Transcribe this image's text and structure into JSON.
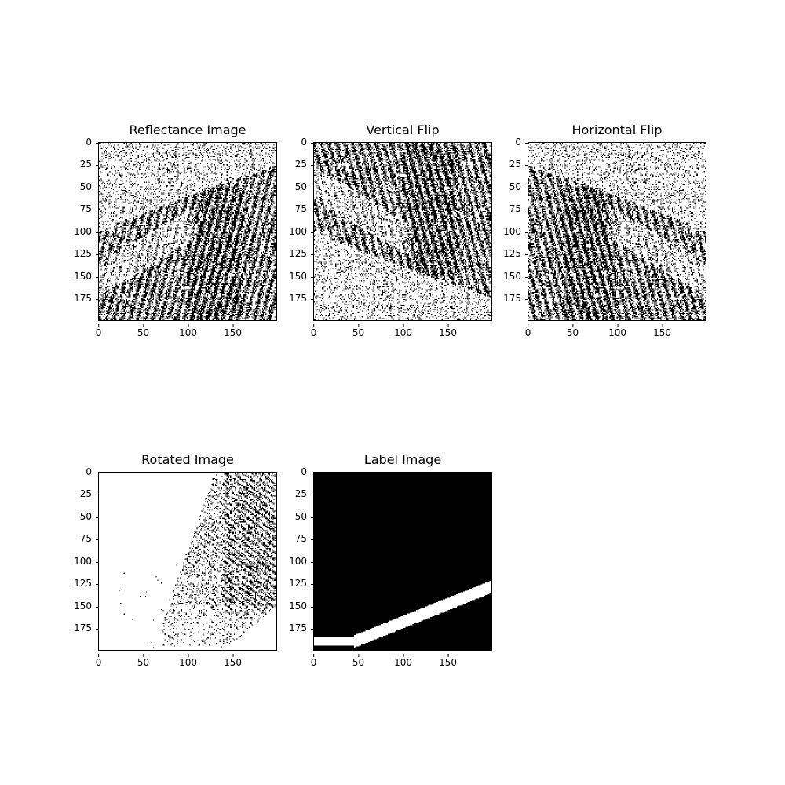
{
  "figure": {
    "panels": [
      {
        "title": "Reflectance Image",
        "kind": "reflectance"
      },
      {
        "title": "Vertical Flip",
        "kind": "vflip"
      },
      {
        "title": "Horizontal Flip",
        "kind": "hflip"
      },
      {
        "title": "Rotated Image",
        "kind": "rotated"
      },
      {
        "title": "Label Image",
        "kind": "label"
      }
    ],
    "yticks": [
      "0",
      "25",
      "50",
      "75",
      "100",
      "125",
      "150",
      "175"
    ],
    "xticks": [
      "0",
      "50",
      "100",
      "150"
    ],
    "colors": {
      "foreground": "#000000",
      "background": "#ffffff"
    }
  }
}
